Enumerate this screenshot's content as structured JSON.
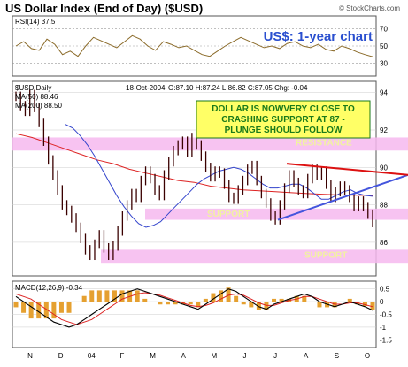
{
  "chart_data": {
    "type": "line",
    "title": "US Dollar Index (End of Day) ($USD)",
    "brand": "© StockCharts.com",
    "subtitle": "US$: 1-year chart",
    "x_labels": [
      "N",
      "D",
      "04",
      "F",
      "M",
      "A",
      "M",
      "J",
      "J",
      "A",
      "S",
      "O"
    ],
    "rsi": {
      "label": "RSI(14) 37.5",
      "ticks": [
        70,
        50,
        30
      ],
      "ylim": [
        15,
        85
      ],
      "values": [
        50,
        55,
        47,
        45,
        58,
        52,
        40,
        44,
        38,
        50,
        60,
        56,
        52,
        48,
        55,
        62,
        58,
        50,
        45,
        55,
        52,
        48,
        50,
        45,
        40,
        38,
        44,
        50,
        55,
        60,
        56,
        52,
        48,
        50,
        47,
        53,
        55,
        50,
        48,
        52,
        46,
        44,
        50,
        47,
        43,
        40,
        37.5
      ]
    },
    "price": {
      "label": "$USD Daily",
      "date_label": "18-Oct-2004",
      "ohlc_label": "O:87.10 H:87.24 L:86.82 C:87.05 Chg: -0.04",
      "ma50_label": "MA(50) 88.46",
      "ma200_label": "MA(200) 88.50",
      "ticks": [
        94,
        92,
        90,
        88,
        86
      ],
      "ylim": [
        84.2,
        94.6
      ],
      "close": [
        93.8,
        93.3,
        93.0,
        93.9,
        93.2,
        92.4,
        91.4,
        90.4,
        89.6,
        88.8,
        88.0,
        87.7,
        87.3,
        86.8,
        86.2,
        85.6,
        85.3,
        85.9,
        86.4,
        85.7,
        85.3,
        85.8,
        86.6,
        87.4,
        88.0,
        88.6,
        88.4,
        89.3,
        89.8,
        89.4,
        88.8,
        88.5,
        89.6,
        90.3,
        90.9,
        91.2,
        91.4,
        90.8,
        91.6,
        91.2,
        90.6,
        90.0,
        89.5,
        89.8,
        89.7,
        89.1,
        88.4,
        88.3,
        88.8,
        89.3,
        89.9,
        90.1,
        89.3,
        88.6,
        88.1,
        87.4,
        87.2,
        88.0,
        88.9,
        89.6,
        89.2,
        88.8,
        88.6,
        89.4,
        89.9,
        89.6,
        89.8,
        89.1,
        88.4,
        88.7,
        89.0,
        88.8,
        88.4,
        87.9,
        88.2,
        87.9,
        87.5,
        87.05
      ],
      "ma50": [
        92.3,
        92.1,
        91.7,
        91.2,
        90.6,
        89.9,
        89.2,
        88.5,
        87.9,
        87.4,
        87.0,
        86.8,
        86.9,
        87.1,
        87.5,
        87.9,
        88.3,
        88.7,
        89.1,
        89.4,
        89.6,
        89.8,
        89.9,
        90.0,
        89.9,
        89.7,
        89.4,
        89.1,
        88.9,
        88.9,
        89.0,
        89.1,
        89.1,
        88.9,
        88.6,
        88.3,
        88.3,
        88.5,
        88.7,
        88.8,
        88.6,
        88.5,
        88.46
      ],
      "ma200": [
        91.8,
        91.6,
        91.3,
        91.0,
        90.7,
        90.4,
        90.2,
        89.9,
        89.7,
        89.5,
        89.3,
        89.2,
        89.0,
        88.9,
        88.8,
        88.75,
        88.7,
        88.65,
        88.6,
        88.56,
        88.53,
        88.51,
        88.5
      ],
      "resistance_band": [
        90.9,
        91.6
      ],
      "support_band_upper": [
        87.2,
        87.8
      ],
      "support_band_lower": [
        84.9,
        85.6
      ],
      "resistance_label": "RESISTANCE",
      "support_label_upper": "SUPPORT",
      "support_label_lower": "SUPPORT",
      "callout": [
        "DOLLAR IS NOWVERY CLOSE TO",
        "CRASHING SUPPORT AT 87 -",
        "PLUNGE SHOULD FOLLOW"
      ]
    },
    "macd": {
      "label": "MACD(12,26,9) -0.34",
      "ticks": [
        0.5,
        0.0,
        -0.5,
        -1.0,
        -1.5
      ],
      "ylim": [
        -1.8,
        0.8
      ],
      "macd": [
        0.2,
        0.0,
        -0.2,
        -0.4,
        -0.6,
        -0.8,
        -0.9,
        -1.0,
        -0.9,
        -0.7,
        -0.5,
        -0.3,
        -0.1,
        0.1,
        0.3,
        0.4,
        0.5,
        0.4,
        0.3,
        0.2,
        0.1,
        0.0,
        -0.1,
        -0.2,
        -0.3,
        -0.1,
        0.1,
        0.3,
        0.5,
        0.4,
        0.2,
        0.0,
        -0.2,
        -0.3,
        -0.1,
        0.0,
        0.1,
        0.2,
        0.3,
        0.2,
        0.0,
        -0.1,
        -0.2,
        -0.1,
        0.0,
        -0.1,
        -0.2,
        -0.34
      ],
      "signal": [
        0.3,
        0.2,
        0.1,
        -0.1,
        -0.3,
        -0.5,
        -0.7,
        -0.8,
        -0.9,
        -0.8,
        -0.7,
        -0.5,
        -0.3,
        -0.1,
        0.1,
        0.2,
        0.3,
        0.35,
        0.3,
        0.25,
        0.15,
        0.05,
        -0.05,
        -0.15,
        -0.2,
        -0.15,
        -0.05,
        0.1,
        0.25,
        0.3,
        0.25,
        0.1,
        -0.05,
        -0.15,
        -0.15,
        -0.05,
        0.05,
        0.1,
        0.2,
        0.2,
        0.1,
        0.0,
        -0.1,
        -0.1,
        -0.05,
        -0.05,
        -0.12,
        -0.2
      ]
    }
  }
}
